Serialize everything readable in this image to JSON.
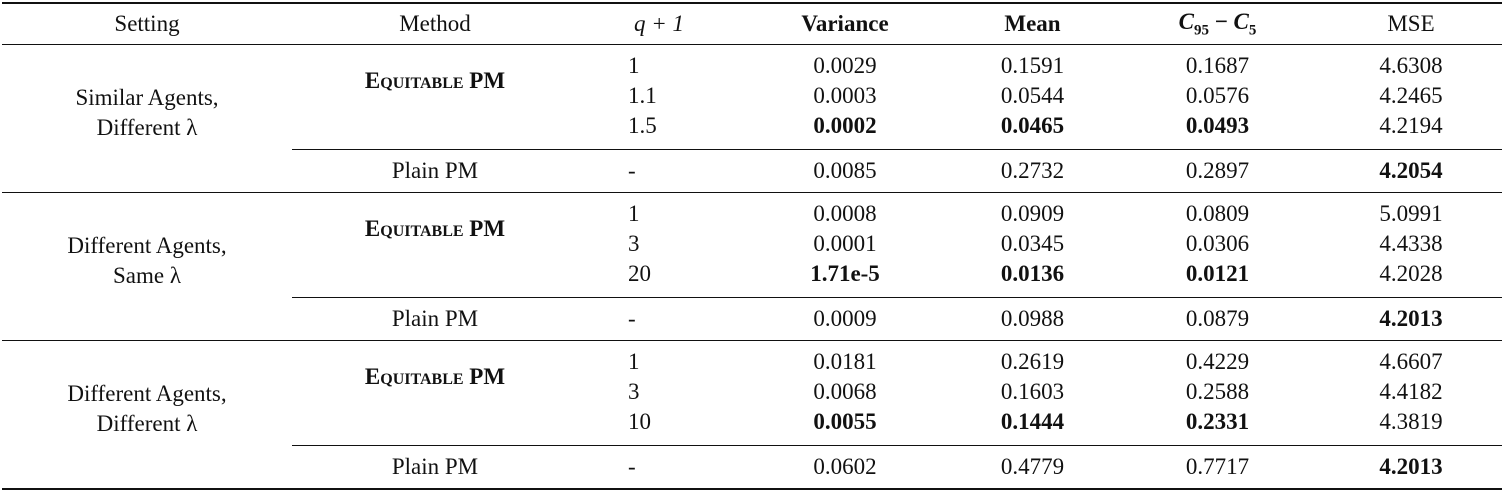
{
  "table": {
    "header": [
      "Setting",
      "Method",
      "q + 1",
      "Variance",
      "Mean",
      [
        {
          "base": "C",
          "sub": "95"
        },
        " − ",
        {
          "base": "C",
          "sub": "5"
        }
      ],
      "MSE"
    ],
    "groups": [
      {
        "setting": [
          "Similar Agents,",
          "Different λ"
        ],
        "equitable": {
          "method": "Equitable PM",
          "rows": [
            {
              "q": "1",
              "variance": "0.0029",
              "mean": "0.1591",
              "c": "0.1687",
              "mse": "4.6308",
              "bold": []
            },
            {
              "q": "1.1",
              "variance": "0.0003",
              "mean": "0.0544",
              "c": "0.0576",
              "mse": "4.2465",
              "bold": []
            },
            {
              "q": "1.5",
              "variance": "0.0002",
              "mean": "0.0465",
              "c": "0.0493",
              "mse": "4.2194",
              "bold": [
                "variance",
                "mean",
                "c"
              ]
            }
          ]
        },
        "plain": {
          "method": "Plain PM",
          "q": "-",
          "variance": "0.0085",
          "mean": "0.2732",
          "c": "0.2897",
          "mse": "4.2054",
          "bold": [
            "mse"
          ]
        }
      },
      {
        "setting": [
          "Different Agents,",
          "Same λ"
        ],
        "equitable": {
          "method": "Equitable PM",
          "rows": [
            {
              "q": "1",
              "variance": "0.0008",
              "mean": "0.0909",
              "c": "0.0809",
              "mse": "5.0991",
              "bold": []
            },
            {
              "q": "3",
              "variance": "0.0001",
              "mean": "0.0345",
              "c": "0.0306",
              "mse": "4.4338",
              "bold": []
            },
            {
              "q": "20",
              "variance": "1.71e-5",
              "mean": "0.0136",
              "c": "0.0121",
              "mse": "4.2028",
              "bold": [
                "variance",
                "mean",
                "c"
              ]
            }
          ]
        },
        "plain": {
          "method": "Plain PM",
          "q": "-",
          "variance": "0.0009",
          "mean": "0.0988",
          "c": "0.0879",
          "mse": "4.2013",
          "bold": [
            "mse"
          ]
        }
      },
      {
        "setting": [
          "Different Agents,",
          "Different λ"
        ],
        "equitable": {
          "method": "Equitable PM",
          "rows": [
            {
              "q": "1",
              "variance": "0.0181",
              "mean": "0.2619",
              "c": "0.4229",
              "mse": "4.6607",
              "bold": []
            },
            {
              "q": "3",
              "variance": "0.0068",
              "mean": "0.1603",
              "c": "0.2588",
              "mse": "4.4182",
              "bold": []
            },
            {
              "q": "10",
              "variance": "0.0055",
              "mean": "0.1444",
              "c": "0.2331",
              "mse": "4.3819",
              "bold": [
                "variance",
                "mean",
                "c"
              ]
            }
          ]
        },
        "plain": {
          "method": "Plain PM",
          "q": "-",
          "variance": "0.0602",
          "mean": "0.4779",
          "c": "0.7717",
          "mse": "4.2013",
          "bold": [
            "mse"
          ]
        }
      }
    ]
  }
}
